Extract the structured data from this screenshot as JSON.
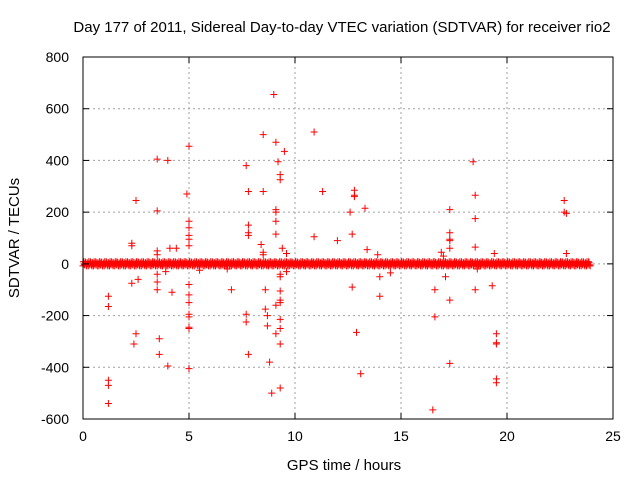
{
  "chart_data": {
    "type": "scatter",
    "title": "Day 177 of 2011, Sidereal Day-to-day VTEC variation (SDTVAR) for receiver rio2",
    "xlabel": "GPS time / hours",
    "ylabel": "SDTVAR / TECUs",
    "xlim": [
      0,
      25
    ],
    "ylim": [
      -600,
      800
    ],
    "xticks": [
      0,
      5,
      10,
      15,
      20,
      25
    ],
    "yticks": [
      -600,
      -400,
      -200,
      0,
      200,
      400,
      600,
      800
    ],
    "xtick_labels": [
      "0",
      "5",
      "10",
      "15",
      "20",
      "25"
    ],
    "ytick_labels": [
      "-600",
      "-400",
      "-200",
      "0",
      "200",
      "400",
      "600",
      "800"
    ],
    "grid": true,
    "marker": "+",
    "color": "#ff0000",
    "baseline_band": {
      "x_start": 0.0,
      "x_end": 23.9,
      "y_min": -8,
      "y_max": 8,
      "step_hours": 0.05
    },
    "points": [
      [
        1.2,
        -125
      ],
      [
        1.2,
        -165
      ],
      [
        1.2,
        -450
      ],
      [
        1.2,
        -470
      ],
      [
        1.2,
        -540
      ],
      [
        2.3,
        80
      ],
      [
        2.3,
        70
      ],
      [
        2.3,
        -75
      ],
      [
        2.4,
        -310
      ],
      [
        2.5,
        245
      ],
      [
        2.5,
        -270
      ],
      [
        2.6,
        -60
      ],
      [
        3.5,
        405
      ],
      [
        3.5,
        205
      ],
      [
        3.5,
        50
      ],
      [
        3.5,
        35
      ],
      [
        3.5,
        -40
      ],
      [
        3.5,
        -70
      ],
      [
        3.5,
        -100
      ],
      [
        3.6,
        -290
      ],
      [
        3.6,
        -350
      ],
      [
        3.9,
        -30
      ],
      [
        4.0,
        400
      ],
      [
        4.0,
        -395
      ],
      [
        4.1,
        60
      ],
      [
        4.2,
        -110
      ],
      [
        4.4,
        60
      ],
      [
        4.9,
        270
      ],
      [
        5.0,
        455
      ],
      [
        5.0,
        165
      ],
      [
        5.0,
        140
      ],
      [
        5.0,
        110
      ],
      [
        5.0,
        95
      ],
      [
        5.0,
        70
      ],
      [
        5.0,
        -80
      ],
      [
        5.0,
        -120
      ],
      [
        5.0,
        -150
      ],
      [
        5.0,
        -195
      ],
      [
        5.0,
        -205
      ],
      [
        5.0,
        -245
      ],
      [
        5.0,
        -250
      ],
      [
        5.0,
        -405
      ],
      [
        5.5,
        -25
      ],
      [
        6.8,
        -20
      ],
      [
        7.0,
        -100
      ],
      [
        7.7,
        380
      ],
      [
        7.8,
        280
      ],
      [
        7.8,
        150
      ],
      [
        7.8,
        120
      ],
      [
        7.8,
        110
      ],
      [
        7.7,
        -195
      ],
      [
        7.7,
        -225
      ],
      [
        7.8,
        -350
      ],
      [
        8.4,
        75
      ],
      [
        8.5,
        500
      ],
      [
        8.5,
        280
      ],
      [
        8.5,
        45
      ],
      [
        8.5,
        35
      ],
      [
        8.6,
        -100
      ],
      [
        8.6,
        -175
      ],
      [
        8.7,
        -200
      ],
      [
        8.7,
        -240
      ],
      [
        8.8,
        -380
      ],
      [
        8.9,
        -500
      ],
      [
        9.0,
        655
      ],
      [
        9.1,
        470
      ],
      [
        9.1,
        210
      ],
      [
        9.1,
        200
      ],
      [
        9.1,
        165
      ],
      [
        9.1,
        115
      ],
      [
        9.1,
        -160
      ],
      [
        9.1,
        -270
      ],
      [
        9.2,
        395
      ],
      [
        9.3,
        345
      ],
      [
        9.3,
        325
      ],
      [
        9.3,
        -40
      ],
      [
        9.3,
        -50
      ],
      [
        9.3,
        -105
      ],
      [
        9.3,
        -140
      ],
      [
        9.3,
        -150
      ],
      [
        9.3,
        -215
      ],
      [
        9.3,
        -250
      ],
      [
        9.3,
        -310
      ],
      [
        9.3,
        -480
      ],
      [
        9.5,
        435
      ],
      [
        9.4,
        60
      ],
      [
        9.6,
        40
      ],
      [
        9.6,
        -30
      ],
      [
        10.9,
        510
      ],
      [
        10.9,
        105
      ],
      [
        11.3,
        280
      ],
      [
        12.0,
        90
      ],
      [
        12.6,
        200
      ],
      [
        12.7,
        115
      ],
      [
        12.7,
        -90
      ],
      [
        12.8,
        285
      ],
      [
        12.8,
        265
      ],
      [
        12.8,
        260
      ],
      [
        12.9,
        -265
      ],
      [
        13.1,
        -425
      ],
      [
        13.3,
        215
      ],
      [
        13.4,
        55
      ],
      [
        13.9,
        35
      ],
      [
        14.0,
        -50
      ],
      [
        14.0,
        -125
      ],
      [
        14.5,
        -35
      ],
      [
        16.5,
        -565
      ],
      [
        16.6,
        -205
      ],
      [
        16.6,
        -100
      ],
      [
        16.9,
        45
      ],
      [
        17.0,
        30
      ],
      [
        17.1,
        -50
      ],
      [
        17.3,
        210
      ],
      [
        17.3,
        120
      ],
      [
        17.3,
        95
      ],
      [
        17.3,
        90
      ],
      [
        17.3,
        60
      ],
      [
        17.3,
        -140
      ],
      [
        17.3,
        -385
      ],
      [
        18.4,
        395
      ],
      [
        18.5,
        265
      ],
      [
        18.5,
        175
      ],
      [
        18.5,
        65
      ],
      [
        18.5,
        -100
      ],
      [
        18.6,
        -20
      ],
      [
        19.3,
        -85
      ],
      [
        19.4,
        40
      ],
      [
        19.5,
        -270
      ],
      [
        19.5,
        -305
      ],
      [
        19.5,
        -310
      ],
      [
        19.5,
        -445
      ],
      [
        19.5,
        -460
      ],
      [
        22.7,
        245
      ],
      [
        22.7,
        200
      ],
      [
        22.8,
        195
      ],
      [
        22.8,
        40
      ]
    ]
  }
}
